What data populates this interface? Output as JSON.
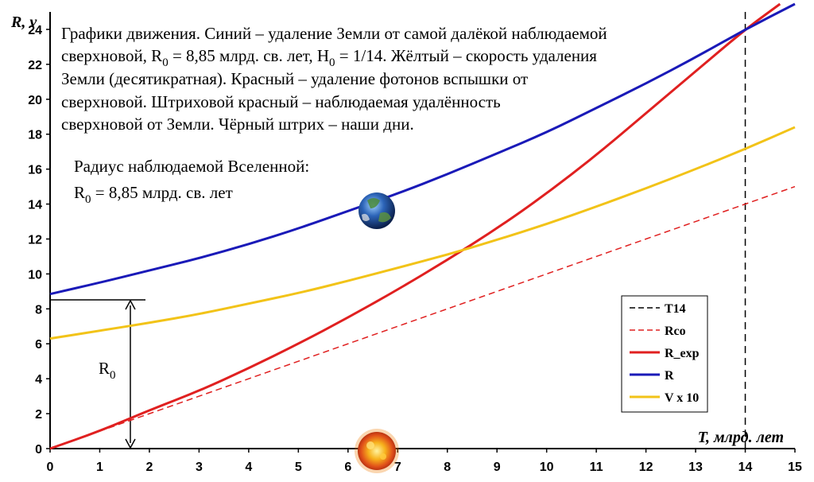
{
  "chart_data": {
    "type": "line",
    "xlabel": "T, млрд. лет",
    "ylabel": "R, v",
    "xlim": [
      0,
      15
    ],
    "ylim": [
      0,
      25
    ],
    "x_ticks": [
      "0",
      "1",
      "2",
      "3",
      "4",
      "5",
      "6",
      "7",
      "8",
      "9",
      "10",
      "11",
      "12",
      "13",
      "14",
      "15"
    ],
    "y_ticks": [
      "0",
      "2",
      "4",
      "6",
      "8",
      "10",
      "12",
      "14",
      "16",
      "18",
      "20",
      "22",
      "24"
    ],
    "grid": false,
    "legend_position": "bottom-right",
    "series": [
      {
        "name": "T14",
        "color": "#000000",
        "style": "dashed",
        "x": [
          14,
          14
        ],
        "y": [
          0,
          25
        ]
      },
      {
        "name": "Rco",
        "color": "#e02020",
        "style": "dashed",
        "x": [
          0,
          3,
          6,
          9,
          12,
          15
        ],
        "y": [
          0,
          3,
          6,
          9,
          12,
          15
        ]
      },
      {
        "name": "R_exp",
        "color": "#e02020",
        "style": "solid",
        "x": [
          0,
          1,
          2,
          3,
          4,
          5,
          6,
          7,
          8,
          9,
          10,
          11,
          12,
          13,
          14,
          14.7
        ],
        "y": [
          0,
          1.0,
          2.2,
          3.3,
          4.6,
          6.0,
          7.5,
          9.1,
          10.8,
          12.6,
          14.6,
          16.8,
          19.2,
          21.6,
          24.0,
          25.5
        ]
      },
      {
        "name": "R",
        "color": "#1a1ab8",
        "style": "solid",
        "x": [
          0,
          1,
          2,
          3,
          4,
          5,
          6,
          7,
          8,
          9,
          10,
          11,
          12,
          13,
          14,
          15
        ],
        "y": [
          8.85,
          9.5,
          10.2,
          10.9,
          11.7,
          12.6,
          13.6,
          14.6,
          15.7,
          16.9,
          18.1,
          19.5,
          20.9,
          22.4,
          24.0,
          25.7
        ]
      },
      {
        "name": "V x 10",
        "color": "#f2c318",
        "style": "solid",
        "x": [
          0,
          1,
          2,
          3,
          4,
          5,
          6,
          7,
          8,
          9,
          10,
          11,
          12,
          13,
          14,
          15
        ],
        "y": [
          6.3,
          6.75,
          7.2,
          7.7,
          8.3,
          8.9,
          9.6,
          10.35,
          11.1,
          11.95,
          12.85,
          13.85,
          14.9,
          16.0,
          17.15,
          18.4
        ]
      }
    ],
    "annotation_lines": [
      "Графики движения. Синий – удаление Земли от самой далёкой наблюдаемой",
      "сверхновой, R",
      "0",
      " = 8,85 млрд. св. лет, H",
      "0",
      " = 1/14. Жёлтый – скорость удаления",
      "Земли (десятикратная). Красный – удаление фотонов вспышки от",
      "сверхновой. Штриховой красный – наблюдаемая удалённость",
      "сверхновой от Земли. Чёрный штрих – наши дни."
    ],
    "radius_label": "Радиус наблюдаемой Вселенной:",
    "radius_value_prefix": "R",
    "radius_value_sub": "0",
    "radius_value_suffix": " = 8,85 млрд. св. лет",
    "r0_label": "R",
    "r0_sub": "0",
    "r0_value": 8.85,
    "earth_marker": {
      "label": "earth-icon",
      "x": 6.6,
      "y": 14.0
    },
    "supernova_marker": {
      "label": "supernova-icon",
      "x": 6.6,
      "y": 0
    }
  }
}
